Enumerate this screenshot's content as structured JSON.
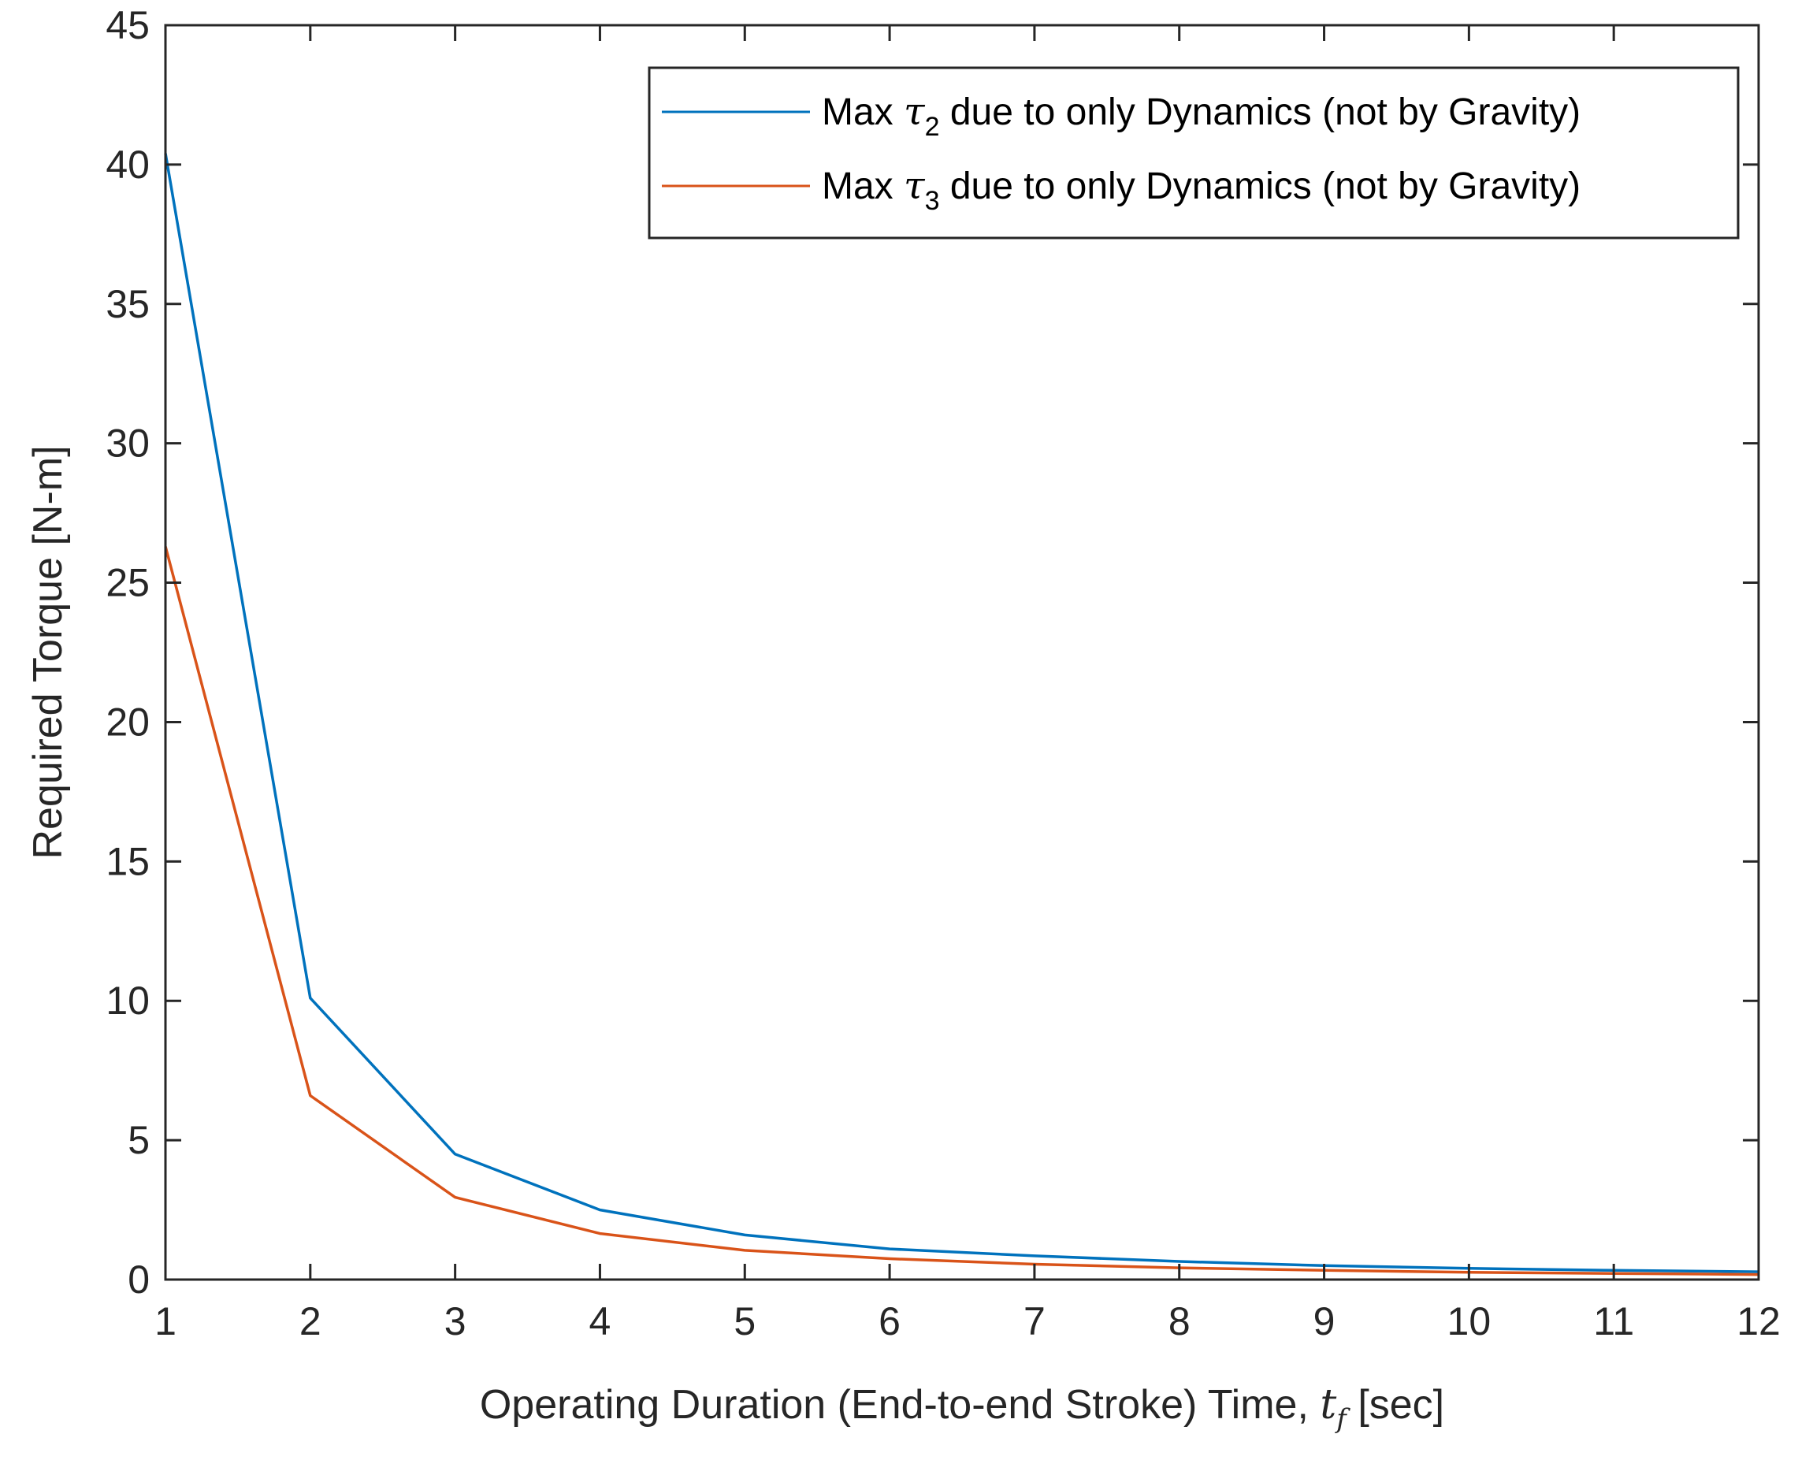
{
  "chart_data": {
    "type": "line",
    "x": [
      1,
      2,
      3,
      4,
      5,
      6,
      7,
      8,
      9,
      10,
      11,
      12
    ],
    "series": [
      {
        "name_prefix": "Max",
        "name_symbol": "τ",
        "name_subscript": "2",
        "name_suffix": "due to only Dynamics (not by Gravity)",
        "color": "#0072BD",
        "values": [
          40.4,
          10.1,
          4.5,
          2.5,
          1.6,
          1.1,
          0.85,
          0.65,
          0.5,
          0.4,
          0.33,
          0.28
        ]
      },
      {
        "name_prefix": "Max",
        "name_symbol": "τ",
        "name_subscript": "3",
        "name_suffix": "due to only Dynamics (not by Gravity)",
        "color": "#D95319",
        "values": [
          26.3,
          6.6,
          2.95,
          1.65,
          1.05,
          0.75,
          0.55,
          0.42,
          0.33,
          0.26,
          0.22,
          0.18
        ]
      }
    ],
    "xlabel_main": "Operating Duration (End-to-end Stroke) Time,",
    "xlabel_symbol": "t",
    "xlabel_subscript": "f",
    "xlabel_unit": "[sec]",
    "ylabel": "Required Torque [N-m]",
    "xlim": [
      1,
      12
    ],
    "ylim": [
      0,
      45
    ],
    "xticks": [
      "1",
      "2",
      "3",
      "4",
      "5",
      "6",
      "7",
      "8",
      "9",
      "10",
      "11",
      "12"
    ],
    "yticks": [
      "0",
      "5",
      "10",
      "15",
      "20",
      "25",
      "30",
      "35",
      "40",
      "45"
    ],
    "grid": false,
    "legend_position": "top-right"
  }
}
